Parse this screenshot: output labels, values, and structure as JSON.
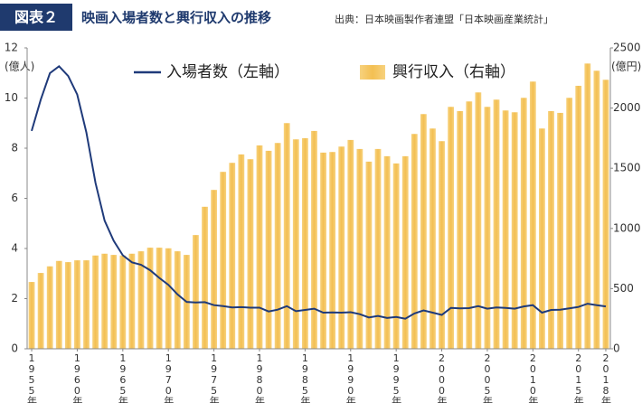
{
  "chart_data": {
    "type": "combo",
    "label": "図表２",
    "title": "映画入場者数と興行収入の推移",
    "source": "出典：日本映画製作者連盟「日本映画産業統計」",
    "y_unit": "(億人)",
    "y2_unit": "(億円)",
    "categories": [
      "1955年",
      null,
      null,
      null,
      null,
      "1960年",
      null,
      null,
      null,
      null,
      "1965年",
      null,
      null,
      null,
      null,
      "1970年",
      null,
      null,
      null,
      null,
      "1975年",
      null,
      null,
      null,
      null,
      "1980年",
      null,
      null,
      null,
      null,
      "1985年",
      null,
      null,
      null,
      null,
      "1990年",
      null,
      null,
      null,
      null,
      "1995年",
      null,
      null,
      null,
      null,
      "2000年",
      null,
      null,
      null,
      null,
      "2005年",
      null,
      null,
      null,
      null,
      "2010年",
      null,
      null,
      null,
      null,
      "2015年",
      null,
      null,
      "2018年"
    ],
    "ylim": [
      0,
      12
    ],
    "yticks": [
      0,
      2,
      4,
      6,
      8,
      10,
      12
    ],
    "y2lim": [
      0,
      2500
    ],
    "y2ticks": [
      0,
      500,
      1000,
      1500,
      2000,
      2500
    ],
    "series": [
      {
        "name": "興行収入（右軸）",
        "type": "bar",
        "axis": "y2",
        "color": "#f3bf52",
        "values": [
          555,
          630,
          685,
          730,
          720,
          735,
          735,
          775,
          790,
          780,
          775,
          790,
          810,
          840,
          840,
          835,
          810,
          780,
          945,
          1180,
          1320,
          1470,
          1545,
          1615,
          1575,
          1690,
          1645,
          1710,
          1875,
          1740,
          1750,
          1810,
          1630,
          1635,
          1680,
          1735,
          1660,
          1555,
          1660,
          1600,
          1540,
          1600,
          1785,
          1950,
          1830,
          1725,
          2010,
          1975,
          2055,
          2130,
          2010,
          2070,
          1980,
          1965,
          2085,
          2220,
          1830,
          1975,
          1960,
          2085,
          2185,
          2370,
          2310,
          2235
        ]
      },
      {
        "name": "入場者数（左軸）",
        "type": "line",
        "color": "#1f3a7a",
        "values": [
          8.69,
          9.94,
          10.99,
          11.27,
          10.88,
          10.14,
          8.63,
          6.62,
          5.11,
          4.31,
          3.73,
          3.45,
          3.35,
          3.13,
          2.83,
          2.55,
          2.17,
          1.87,
          1.85,
          1.86,
          1.74,
          1.7,
          1.65,
          1.66,
          1.64,
          1.64,
          1.49,
          1.56,
          1.7,
          1.5,
          1.55,
          1.6,
          1.44,
          1.45,
          1.44,
          1.46,
          1.38,
          1.25,
          1.31,
          1.23,
          1.27,
          1.2,
          1.41,
          1.53,
          1.44,
          1.35,
          1.63,
          1.61,
          1.62,
          1.7,
          1.6,
          1.65,
          1.63,
          1.6,
          1.69,
          1.74,
          1.44,
          1.55,
          1.56,
          1.61,
          1.67,
          1.8,
          1.74,
          1.69
        ]
      }
    ]
  }
}
